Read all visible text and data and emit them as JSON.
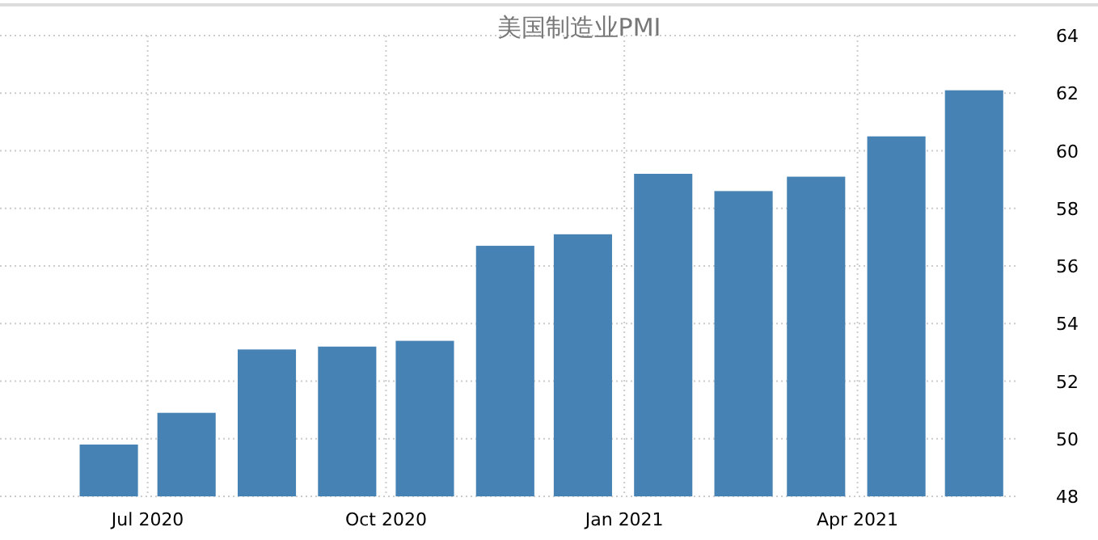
{
  "chart_data": {
    "type": "bar",
    "title": "美国制造业PMI",
    "x": [
      "2020-06-16",
      "2020-07-16",
      "2020-08-16",
      "2020-09-16",
      "2020-10-16",
      "2020-11-16",
      "2020-12-16",
      "2021-01-16",
      "2021-02-16",
      "2021-03-16",
      "2021-04-16",
      "2021-05-16"
    ],
    "values": [
      49.8,
      50.9,
      53.1,
      53.2,
      53.4,
      56.7,
      57.1,
      59.2,
      58.6,
      59.1,
      60.5,
      62.1
    ],
    "color": "#4682b4",
    "xlim": [
      "2020-05-05",
      "2021-06-01"
    ],
    "xticks": [
      {
        "value": "2020-07-01",
        "label": "Jul 2020"
      },
      {
        "value": "2020-10-01",
        "label": "Oct 2020"
      },
      {
        "value": "2021-01-01",
        "label": "Jan 2021"
      },
      {
        "value": "2021-04-01",
        "label": "Apr 2021"
      }
    ],
    "ylim": [
      48,
      64
    ],
    "yticks": [
      48,
      50,
      52,
      54,
      56,
      58,
      60,
      62,
      64
    ],
    "grid": true
  }
}
